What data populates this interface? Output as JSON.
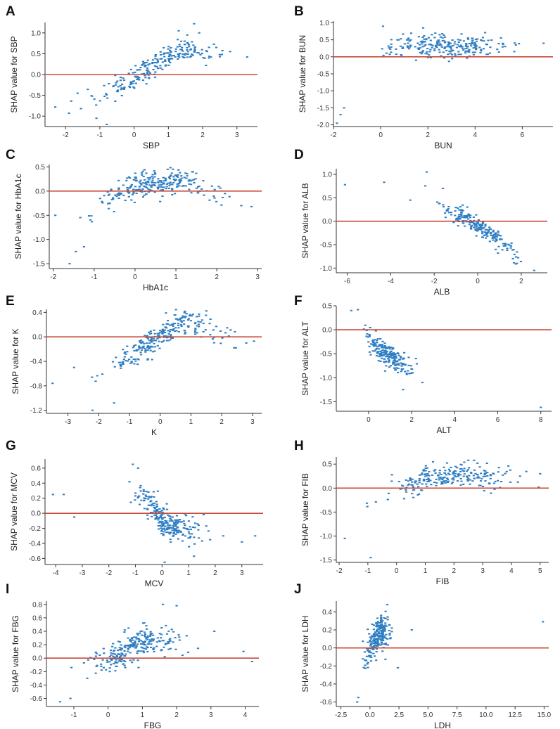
{
  "figure": {
    "point_color": "#2f7ec3",
    "zero_line_color": "#c84b3a",
    "axis_color": "#333333"
  },
  "chart_data": [
    {
      "id": "A",
      "type": "scatter",
      "xlabel": "SBP",
      "ylabel": "SHAP value for SBP",
      "xlim": [
        -2.6,
        3.6
      ],
      "ylim": [
        -1.25,
        1.25
      ],
      "xticks": [
        -2,
        -1,
        0,
        1,
        2,
        3
      ],
      "xtick_labels": [
        "-2",
        "-1",
        "0",
        "1",
        "2",
        "3"
      ],
      "yticks": [
        -1.0,
        -0.5,
        0.0,
        0.5,
        1.0
      ],
      "ytick_labels": [
        "-1.0",
        "-0.5",
        "0.0",
        "0.5",
        "1.0"
      ],
      "trend": [
        [
          -2.4,
          -0.85
        ],
        [
          -2,
          -0.8
        ],
        [
          -1.5,
          -0.7
        ],
        [
          -1,
          -0.55
        ],
        [
          -0.5,
          -0.3
        ],
        [
          0,
          -0.05
        ],
        [
          0.5,
          0.2
        ],
        [
          1,
          0.45
        ],
        [
          1.5,
          0.6
        ],
        [
          2,
          0.55
        ],
        [
          2.5,
          0.5
        ],
        [
          3.5,
          0.45
        ]
      ],
      "spread": 0.14,
      "n": 230,
      "seed": 11,
      "points": [
        [
          -2.3,
          -0.78
        ],
        [
          -1.9,
          -0.93
        ],
        [
          -1.55,
          -0.82
        ],
        [
          -1.65,
          -0.45
        ],
        [
          -1.1,
          -1.05
        ],
        [
          -0.8,
          -1.2
        ],
        [
          1.3,
          1.05
        ],
        [
          1.75,
          1.22
        ],
        [
          1.9,
          1.0
        ],
        [
          2.4,
          0.65
        ],
        [
          2.8,
          0.55
        ],
        [
          3.3,
          0.42
        ],
        [
          2.1,
          0.22
        ],
        [
          1.55,
          0.95
        ]
      ]
    },
    {
      "id": "B",
      "type": "scatter",
      "xlabel": "BUN",
      "ylabel": "SHAP value for BUN",
      "xlim": [
        -2.0,
        7.3
      ],
      "ylim": [
        -2.05,
        1.05
      ],
      "xticks": [
        -2,
        0,
        2,
        4,
        6
      ],
      "xtick_labels": [
        "-2",
        "0",
        "2",
        "4",
        "6"
      ],
      "yticks": [
        -2.0,
        -1.5,
        -1.0,
        -0.5,
        0.0,
        0.5,
        1.0
      ],
      "ytick_labels": [
        "-2.0",
        "-1.5",
        "-1.0",
        "-0.5",
        "0.0",
        "0.5",
        "1.0"
      ],
      "trend": [
        [
          -1.7,
          -1.6
        ],
        [
          -1.3,
          -0.9
        ],
        [
          -1,
          -0.45
        ],
        [
          -0.5,
          -0.2
        ],
        [
          0,
          0.05
        ],
        [
          0.5,
          0.3
        ],
        [
          1,
          0.4
        ],
        [
          2,
          0.35
        ],
        [
          3,
          0.3
        ],
        [
          7,
          0.35
        ]
      ],
      "spread": 0.16,
      "n": 240,
      "seed": 22,
      "points": [
        [
          -1.85,
          -1.95
        ],
        [
          -1.7,
          -1.7
        ],
        [
          -1.55,
          -1.5
        ],
        [
          0.1,
          0.9
        ],
        [
          1.8,
          0.85
        ],
        [
          2.5,
          0.65
        ],
        [
          3.3,
          0.15
        ],
        [
          6.9,
          0.4
        ],
        [
          2.9,
          0.3
        ]
      ]
    },
    {
      "id": "C",
      "type": "scatter",
      "xlabel": "HbA1c",
      "ylabel": "SHAP value for HbA1c",
      "xlim": [
        -2.1,
        3.1
      ],
      "ylim": [
        -1.6,
        0.55
      ],
      "xticks": [
        -2,
        -1,
        0,
        1,
        2,
        3
      ],
      "xtick_labels": [
        "-2",
        "-1",
        "0",
        "1",
        "2",
        "3"
      ],
      "yticks": [
        -1.5,
        -1.0,
        -0.5,
        0.0,
        0.5
      ],
      "ytick_labels": [
        "-1.5",
        "-1.0",
        "-0.5",
        "0.0",
        "0.5"
      ],
      "trend": [
        [
          -2,
          -0.55
        ],
        [
          -1.7,
          -0.85
        ],
        [
          -1.4,
          -0.8
        ],
        [
          -1.1,
          -0.55
        ],
        [
          -0.8,
          -0.25
        ],
        [
          -0.4,
          -0.05
        ],
        [
          0,
          0.1
        ],
        [
          0.5,
          0.18
        ],
        [
          1,
          0.2
        ],
        [
          1.5,
          0.15
        ],
        [
          2,
          0.0
        ],
        [
          2.5,
          -0.2
        ],
        [
          2.85,
          -0.3
        ]
      ],
      "spread": 0.13,
      "n": 260,
      "seed": 33,
      "points": [
        [
          -1.6,
          -1.5
        ],
        [
          -1.45,
          -1.25
        ],
        [
          -1.25,
          -1.15
        ],
        [
          -1.95,
          -0.5
        ],
        [
          2.2,
          -0.05
        ],
        [
          2.6,
          -0.3
        ],
        [
          2.85,
          -0.32
        ],
        [
          1.4,
          0.4
        ],
        [
          1.1,
          0.38
        ]
      ]
    },
    {
      "id": "D",
      "type": "scatter",
      "xlabel": "ALB",
      "ylabel": "SHAP value for ALB",
      "xlim": [
        -6.5,
        3.2
      ],
      "ylim": [
        -1.1,
        1.12
      ],
      "xticks": [
        -6,
        -4,
        -2,
        0,
        2
      ],
      "xtick_labels": [
        "-6",
        "-4",
        "-2",
        "0",
        "2"
      ],
      "yticks": [
        -1.0,
        -0.5,
        0.0,
        0.5,
        1.0
      ],
      "ytick_labels": [
        "-1.0",
        "-0.5",
        "0.0",
        "0.5",
        "1.0"
      ],
      "trend": [
        [
          -3,
          0.6
        ],
        [
          -2.5,
          0.7
        ],
        [
          -2,
          0.65
        ],
        [
          -1.5,
          0.25
        ],
        [
          -1,
          0.15
        ],
        [
          -0.5,
          0.05
        ],
        [
          0,
          -0.1
        ],
        [
          0.5,
          -0.25
        ],
        [
          1,
          -0.4
        ],
        [
          1.5,
          -0.6
        ],
        [
          2,
          -0.8
        ],
        [
          2.7,
          -1.0
        ]
      ],
      "spread": 0.1,
      "n": 230,
      "seed": 44,
      "points": [
        [
          -6.1,
          0.78
        ],
        [
          -4.3,
          0.83
        ],
        [
          -2.35,
          1.05
        ],
        [
          -3.1,
          0.45
        ],
        [
          -1.6,
          0.7
        ],
        [
          2.6,
          -1.05
        ],
        [
          2.1,
          -1.1
        ],
        [
          1.8,
          -0.9
        ]
      ]
    },
    {
      "id": "E",
      "type": "scatter",
      "xlabel": "K",
      "ylabel": "SHAP value for K",
      "xlim": [
        -3.7,
        3.3
      ],
      "ylim": [
        -1.25,
        0.45
      ],
      "xticks": [
        -3,
        -2,
        -1,
        0,
        1,
        2,
        3
      ],
      "xtick_labels": [
        "-3",
        "-2",
        "-1",
        "0",
        "1",
        "2",
        "3"
      ],
      "yticks": [
        -1.2,
        -0.8,
        -0.4,
        0.0,
        0.4
      ],
      "ytick_labels": [
        "-1.2",
        "-0.8",
        "-0.4",
        "0.0",
        "0.4"
      ],
      "trend": [
        [
          -3,
          -0.7
        ],
        [
          -2.5,
          -0.7
        ],
        [
          -2,
          -0.6
        ],
        [
          -1.5,
          -0.45
        ],
        [
          -1,
          -0.3
        ],
        [
          -0.5,
          -0.15
        ],
        [
          0,
          0.0
        ],
        [
          0.5,
          0.2
        ],
        [
          1,
          0.25
        ],
        [
          1.5,
          0.15
        ],
        [
          2,
          0.05
        ],
        [
          2.5,
          -0.05
        ],
        [
          3,
          -0.08
        ]
      ],
      "spread": 0.11,
      "n": 260,
      "seed": 55,
      "points": [
        [
          -3.5,
          -0.76
        ],
        [
          -2.2,
          -1.2
        ],
        [
          -1.5,
          -1.08
        ],
        [
          -2.8,
          -0.5
        ],
        [
          2.8,
          -0.1
        ],
        [
          3.05,
          -0.07
        ],
        [
          2.4,
          -0.18
        ],
        [
          0.8,
          0.4
        ]
      ]
    },
    {
      "id": "F",
      "type": "scatter",
      "xlabel": "ALT",
      "ylabel": "SHAP value for ALT",
      "xlim": [
        -1.5,
        8.5
      ],
      "ylim": [
        -1.7,
        0.5
      ],
      "xticks": [
        0,
        2,
        4,
        6,
        8
      ],
      "xtick_labels": [
        "0",
        "2",
        "4",
        "6",
        "8"
      ],
      "yticks": [
        -1.5,
        -1.0,
        -0.5,
        0.0,
        0.5
      ],
      "ytick_labels": [
        "-1.5",
        "-1.0",
        "-0.5",
        "0.0",
        "0.5"
      ],
      "trend": [
        [
          -0.9,
          0.25
        ],
        [
          -0.6,
          0.2
        ],
        [
          -0.3,
          0.05
        ],
        [
          0,
          -0.2
        ],
        [
          0.5,
          -0.4
        ],
        [
          1,
          -0.55
        ],
        [
          1.5,
          -0.7
        ],
        [
          2,
          -0.85
        ],
        [
          2.6,
          -1.0
        ]
      ],
      "spread": 0.12,
      "n": 220,
      "seed": 66,
      "points": [
        [
          8.0,
          -1.62
        ],
        [
          2.5,
          -1.1
        ],
        [
          2.2,
          -0.6
        ],
        [
          1.6,
          -1.25
        ],
        [
          -0.8,
          0.4
        ],
        [
          -0.5,
          0.42
        ]
      ]
    },
    {
      "id": "G",
      "type": "scatter",
      "xlabel": "MCV",
      "ylabel": "SHAP value for MCV",
      "xlim": [
        -4.4,
        3.8
      ],
      "ylim": [
        -0.68,
        0.72
      ],
      "xticks": [
        -4,
        -3,
        -2,
        -1,
        0,
        1,
        2,
        3
      ],
      "xtick_labels": [
        "-4",
        "-3",
        "-2",
        "-1",
        "0",
        "1",
        "2",
        "3"
      ],
      "yticks": [
        -0.6,
        -0.4,
        -0.2,
        0.0,
        0.2,
        0.4,
        0.6
      ],
      "ytick_labels": [
        "-0.6",
        "-0.4",
        "-0.2",
        "0.0",
        "0.2",
        "0.4",
        "0.6"
      ],
      "trend": [
        [
          -2,
          0.3
        ],
        [
          -1.5,
          0.32
        ],
        [
          -1,
          0.3
        ],
        [
          -0.5,
          0.15
        ],
        [
          0,
          -0.1
        ],
        [
          0.5,
          -0.2
        ],
        [
          1,
          -0.25
        ],
        [
          1.5,
          -0.25
        ],
        [
          2,
          -0.2
        ]
      ],
      "spread": 0.1,
      "n": 250,
      "seed": 77,
      "points": [
        [
          -4.1,
          0.25
        ],
        [
          -3.7,
          0.25
        ],
        [
          -3.3,
          -0.05
        ],
        [
          -1.1,
          0.65
        ],
        [
          -0.9,
          0.6
        ],
        [
          3.5,
          -0.3
        ],
        [
          3.0,
          -0.38
        ],
        [
          1.2,
          -0.57
        ],
        [
          0.1,
          -0.65
        ],
        [
          2.3,
          -0.3
        ]
      ]
    },
    {
      "id": "H",
      "type": "scatter",
      "xlabel": "FIB",
      "ylabel": "SHAP value for FIB",
      "xlim": [
        -2.1,
        5.3
      ],
      "ylim": [
        -1.55,
        0.65
      ],
      "xticks": [
        -2,
        -1,
        0,
        1,
        2,
        3,
        4,
        5
      ],
      "xtick_labels": [
        "-2",
        "-1",
        "0",
        "1",
        "2",
        "3",
        "4",
        "5"
      ],
      "yticks": [
        -1.5,
        -1.0,
        -0.5,
        0.0,
        0.5
      ],
      "ytick_labels": [
        "-1.5",
        "-1.0",
        "-0.5",
        "0.0",
        "0.5"
      ],
      "trend": [
        [
          -1.9,
          -0.7
        ],
        [
          -1.5,
          -0.55
        ],
        [
          -1,
          -0.4
        ],
        [
          -0.5,
          -0.2
        ],
        [
          0,
          0.0
        ],
        [
          0.5,
          0.1
        ],
        [
          1,
          0.2
        ],
        [
          1.5,
          0.25
        ],
        [
          2,
          0.3
        ],
        [
          2.5,
          0.3
        ],
        [
          3,
          0.25
        ],
        [
          5,
          0.2
        ]
      ],
      "spread": 0.12,
      "n": 230,
      "seed": 88,
      "points": [
        [
          -0.9,
          -1.45
        ],
        [
          -1.8,
          -1.05
        ],
        [
          2.5,
          0.58
        ],
        [
          2.7,
          0.58
        ],
        [
          4.3,
          0.25
        ],
        [
          5.0,
          0.3
        ],
        [
          4.95,
          0.02
        ],
        [
          3.4,
          0.1
        ]
      ]
    },
    {
      "id": "I",
      "type": "scatter",
      "xlabel": "FBG",
      "ylabel": "SHAP value for FBG",
      "xlim": [
        -1.8,
        4.4
      ],
      "ylim": [
        -0.72,
        0.85
      ],
      "xticks": [
        -1,
        0,
        1,
        2,
        3,
        4
      ],
      "xtick_labels": [
        "-1",
        "0",
        "1",
        "2",
        "3",
        "4"
      ],
      "yticks": [
        -0.6,
        -0.4,
        -0.2,
        0.0,
        0.2,
        0.4,
        0.6,
        0.8
      ],
      "ytick_labels": [
        "-0.6",
        "-0.4",
        "-0.2",
        "0.0",
        "0.2",
        "0.4",
        "0.6",
        "0.8"
      ],
      "trend": [
        [
          -1.6,
          -0.35
        ],
        [
          -1,
          -0.25
        ],
        [
          -0.5,
          -0.15
        ],
        [
          0,
          -0.05
        ],
        [
          0.5,
          0.1
        ],
        [
          1,
          0.25
        ],
        [
          1.5,
          0.3
        ],
        [
          2,
          0.25
        ],
        [
          2.5,
          0.2
        ],
        [
          3,
          0.15
        ]
      ],
      "spread": 0.11,
      "n": 250,
      "seed": 99,
      "points": [
        [
          1.6,
          0.8
        ],
        [
          2.0,
          0.78
        ],
        [
          -1.4,
          -0.65
        ],
        [
          -1.1,
          -0.6
        ],
        [
          3.95,
          0.1
        ],
        [
          4.2,
          -0.05
        ],
        [
          3.1,
          0.4
        ]
      ]
    },
    {
      "id": "J",
      "type": "scatter",
      "xlabel": "LDH",
      "ylabel": "SHAP value for LDH",
      "xlim": [
        -2.9,
        15.4
      ],
      "ylim": [
        -0.65,
        0.52
      ],
      "xticks": [
        -2.5,
        0.0,
        2.5,
        5.0,
        7.5,
        10.0,
        12.5,
        15.0
      ],
      "xtick_labels": [
        "-2.5",
        "0.0",
        "2.5",
        "5.0",
        "7.5",
        "10.0",
        "12.5",
        "15.0"
      ],
      "yticks": [
        -0.6,
        -0.4,
        -0.2,
        0.0,
        0.2,
        0.4
      ],
      "ytick_labels": [
        "-0.6",
        "-0.4",
        "-0.2",
        "0.0",
        "0.2",
        "0.4"
      ],
      "trend": [
        [
          -1.3,
          -0.35
        ],
        [
          -1,
          -0.25
        ],
        [
          -0.5,
          -0.12
        ],
        [
          0,
          0.0
        ],
        [
          0.5,
          0.1
        ],
        [
          1,
          0.18
        ],
        [
          1.5,
          0.2
        ],
        [
          2,
          0.1
        ],
        [
          2.5,
          0.05
        ]
      ],
      "spread": 0.09,
      "n": 230,
      "seed": 111,
      "points": [
        [
          14.9,
          0.29
        ],
        [
          3.6,
          0.2
        ],
        [
          1.5,
          0.48
        ],
        [
          -1.1,
          -0.6
        ],
        [
          -1.0,
          -0.55
        ],
        [
          2.4,
          -0.22
        ]
      ]
    }
  ]
}
